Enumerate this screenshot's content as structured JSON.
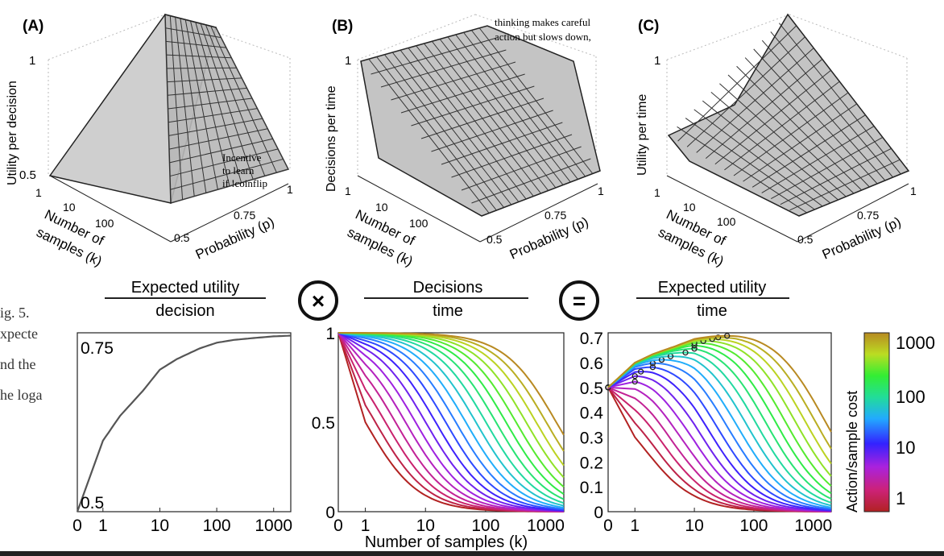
{
  "figure": {
    "panel_a": {
      "label": "(A)",
      "zlabel": "Utility per decision",
      "z_ticks": [
        "1",
        "0.5"
      ],
      "k_label_1": "Number of",
      "k_label_2": "samples (k)",
      "k_ticks": [
        "1",
        "10",
        "100"
      ],
      "p_label": "Probability (p)",
      "p_ticks": [
        "0.5",
        "0.75",
        "1"
      ],
      "note_1": "Incentive",
      "note_2": "to learn",
      "note_3": "if !coinflip"
    },
    "panel_b": {
      "label": "(B)",
      "zlabel": "Decisions per time",
      "z_ticks": [
        "1",
        "1"
      ],
      "k_label_1": "Number of",
      "k_label_2": "samples (k)",
      "k_ticks": [
        "1",
        "10",
        "100"
      ],
      "p_label": "Probability (p)",
      "p_ticks": [
        "0.5",
        "0.75",
        "1"
      ],
      "note_1": "thinking makes careful",
      "note_2": "action but slows down,"
    },
    "panel_c": {
      "label": "(C)",
      "zlabel": "Utility per time",
      "z_ticks": [
        "1",
        "1"
      ],
      "k_label_1": "Number of",
      "k_label_2": "samples (k)",
      "k_ticks": [
        "1",
        "10",
        "100"
      ],
      "p_label": "Probability (p)",
      "p_ticks": [
        "0.5",
        "0.75",
        "1"
      ]
    },
    "eq_1_num": "Expected utility",
    "eq_1_den": "decision",
    "eq_2_num": "Decisions",
    "eq_2_den": "time",
    "eq_3_num": "Expected utility",
    "eq_3_den": "time",
    "op_times": "×",
    "op_equals": "=",
    "caption_1": "ig. 5.",
    "caption_2": "xpecte",
    "caption_3": "nd the",
    "caption_4": "he loga",
    "shared_xlabel": "Number of samples (k)",
    "colorbar_label": "Action/sample cost",
    "colorbar_ticks": [
      "1000",
      "100",
      "10",
      "1"
    ]
  },
  "chart_data": [
    {
      "type": "line",
      "title": "",
      "xlabel": "",
      "ylabel": "",
      "x_ticks": [
        "0",
        "1",
        "10",
        "100",
        "1000"
      ],
      "y_ticks": [
        "0.75",
        "0.5"
      ],
      "series": [
        {
          "x": [
            0,
            1,
            2,
            5,
            10,
            20,
            50,
            100,
            200,
            500,
            1000,
            2000
          ],
          "y": [
            0.5,
            0.6,
            0.635,
            0.67,
            0.7,
            0.715,
            0.73,
            0.738,
            0.742,
            0.745,
            0.747,
            0.748
          ]
        }
      ]
    },
    {
      "type": "line",
      "title": "",
      "xlabel": "Number of samples (k)",
      "ylabel": "",
      "x_ticks": [
        "0",
        "1",
        "10",
        "100",
        "1000"
      ],
      "y_ticks": [
        "1",
        "0.5",
        "0"
      ],
      "ylim": [
        0,
        1
      ],
      "curve_count": 20,
      "cost_range": [
        1,
        1500
      ],
      "formula": "decisions per time = cost / (cost + k)"
    },
    {
      "type": "line",
      "title": "",
      "xlabel": "",
      "ylabel": "",
      "x_ticks": [
        "0",
        "1",
        "10",
        "100",
        "1000"
      ],
      "y_ticks": [
        "0.7",
        "0.6",
        "0.5",
        "0.4",
        "0.3",
        "0.2",
        "0.1",
        "0"
      ],
      "ylim": [
        0,
        0.72
      ],
      "curve_count": 20,
      "cost_range": [
        1,
        1500
      ],
      "formula": "expected utility per time = EU(k) * cost / (cost + k)",
      "markers": "circle at each curve maximum"
    }
  ],
  "colors": {
    "axis": "#222222",
    "surface": "#c8c8c8",
    "eu_curve": "#555555"
  }
}
